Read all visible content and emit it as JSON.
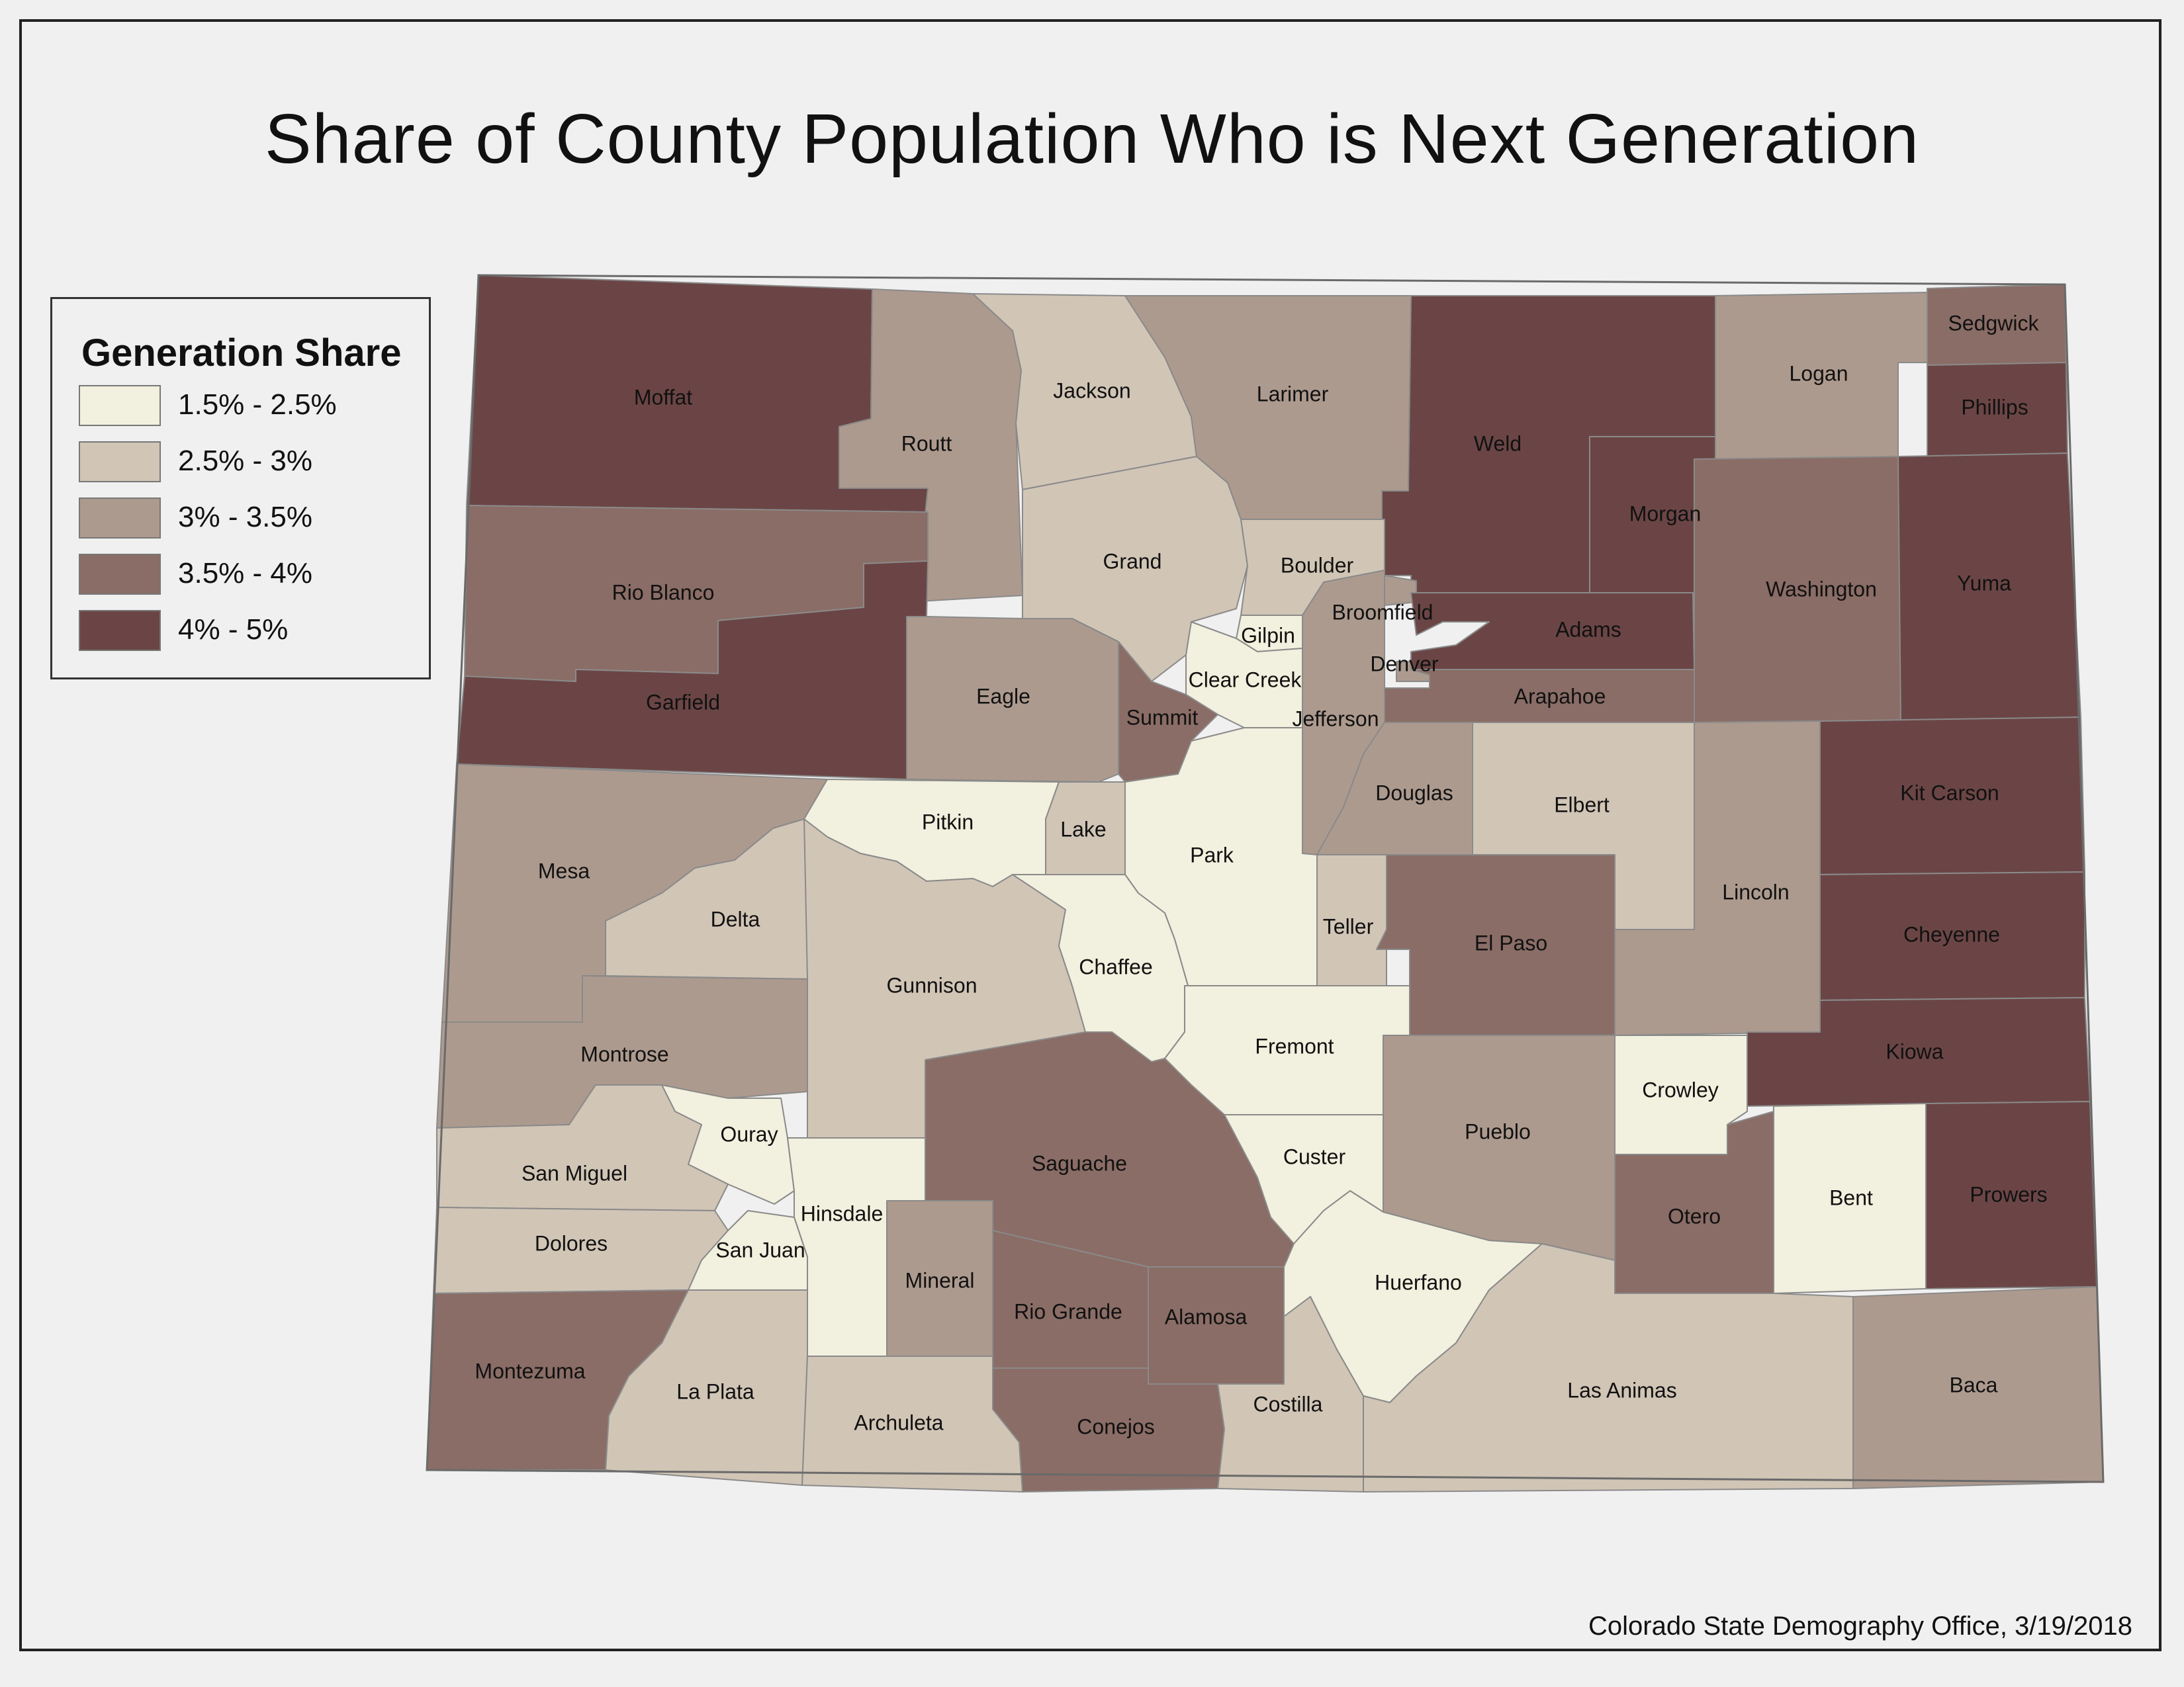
{
  "title": "Share of County Population Who is Next Generation",
  "credit": "Colorado State Demography Office, 3/19/2018",
  "legend": {
    "title": "Generation Share",
    "classes": [
      {
        "label": "1.5% - 2.5%",
        "color": "#f2f0de"
      },
      {
        "label": "2.5% - 3%",
        "color": "#d1c5b6"
      },
      {
        "label": "3% - 3.5%",
        "color": "#ad9a8e"
      },
      {
        "label": "3.5% - 4%",
        "color": "#8a6d66"
      },
      {
        "label": "4% - 5%",
        "color": "#6b4545"
      }
    ]
  },
  "counties": [
    {
      "name": "Moffat",
      "class": 4
    },
    {
      "name": "Routt",
      "class": 2
    },
    {
      "name": "Jackson",
      "class": 1
    },
    {
      "name": "Larimer",
      "class": 2
    },
    {
      "name": "Weld",
      "class": 4
    },
    {
      "name": "Logan",
      "class": 2
    },
    {
      "name": "Sedgwick",
      "class": 3
    },
    {
      "name": "Phillips",
      "class": 4
    },
    {
      "name": "Rio Blanco",
      "class": 3
    },
    {
      "name": "Garfield",
      "class": 4
    },
    {
      "name": "Grand",
      "class": 1
    },
    {
      "name": "Boulder",
      "class": 1
    },
    {
      "name": "Broomfield",
      "class": 2
    },
    {
      "name": "Gilpin",
      "class": 0
    },
    {
      "name": "Clear Creek",
      "class": 0
    },
    {
      "name": "Denver",
      "class": 2
    },
    {
      "name": "Adams",
      "class": 4
    },
    {
      "name": "Arapahoe",
      "class": 3
    },
    {
      "name": "Morgan",
      "class": 4
    },
    {
      "name": "Washington",
      "class": 3
    },
    {
      "name": "Yuma",
      "class": 4
    },
    {
      "name": "Eagle",
      "class": 2
    },
    {
      "name": "Summit",
      "class": 3
    },
    {
      "name": "Jefferson",
      "class": 2
    },
    {
      "name": "Douglas",
      "class": 2
    },
    {
      "name": "Elbert",
      "class": 1
    },
    {
      "name": "Kit Carson",
      "class": 4
    },
    {
      "name": "Mesa",
      "class": 2
    },
    {
      "name": "Pitkin",
      "class": 0
    },
    {
      "name": "Lake",
      "class": 1
    },
    {
      "name": "Park",
      "class": 0
    },
    {
      "name": "Delta",
      "class": 1
    },
    {
      "name": "Gunnison",
      "class": 1
    },
    {
      "name": "Chaffee",
      "class": 0
    },
    {
      "name": "Teller",
      "class": 1
    },
    {
      "name": "El Paso",
      "class": 3
    },
    {
      "name": "Lincoln",
      "class": 2
    },
    {
      "name": "Cheyenne",
      "class": 4
    },
    {
      "name": "Montrose",
      "class": 2
    },
    {
      "name": "Fremont",
      "class": 0
    },
    {
      "name": "Kiowa",
      "class": 4
    },
    {
      "name": "Ouray",
      "class": 0
    },
    {
      "name": "San Miguel",
      "class": 1
    },
    {
      "name": "Hinsdale",
      "class": 0
    },
    {
      "name": "Saguache",
      "class": 3
    },
    {
      "name": "Custer",
      "class": 0
    },
    {
      "name": "Pueblo",
      "class": 2
    },
    {
      "name": "Crowley",
      "class": 0
    },
    {
      "name": "Dolores",
      "class": 1
    },
    {
      "name": "San Juan",
      "class": 0
    },
    {
      "name": "Mineral",
      "class": 2
    },
    {
      "name": "Rio Grande",
      "class": 3
    },
    {
      "name": "Alamosa",
      "class": 3
    },
    {
      "name": "Huerfano",
      "class": 0
    },
    {
      "name": "Otero",
      "class": 3
    },
    {
      "name": "Bent",
      "class": 0
    },
    {
      "name": "Prowers",
      "class": 4
    },
    {
      "name": "Montezuma",
      "class": 3
    },
    {
      "name": "La Plata",
      "class": 1
    },
    {
      "name": "Archuleta",
      "class": 1
    },
    {
      "name": "Conejos",
      "class": 3
    },
    {
      "name": "Costilla",
      "class": 1
    },
    {
      "name": "Las Animas",
      "class": 1
    },
    {
      "name": "Baca",
      "class": 2
    }
  ]
}
